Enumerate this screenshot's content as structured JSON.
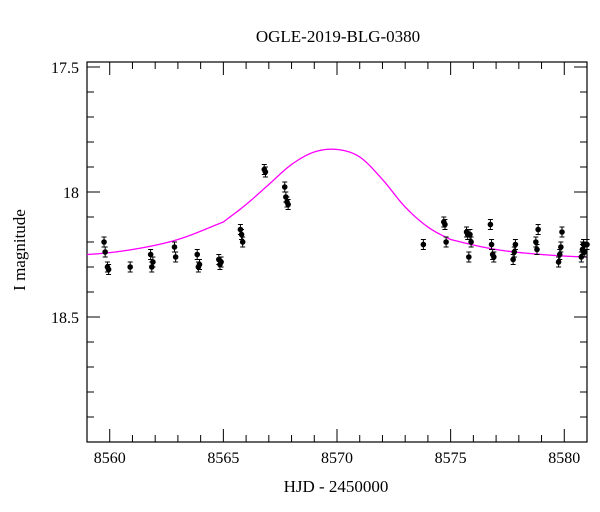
{
  "chart_data": {
    "type": "scatter",
    "title": "OGLE-2019-BLG-0380",
    "xlabel": "HJD - 2450000",
    "ylabel": "I magnitude",
    "xlim": [
      8559,
      8581
    ],
    "ylim": [
      19.0,
      17.48
    ],
    "y_inverted": true,
    "x_ticks": [
      8560,
      8565,
      8570,
      8575,
      8580
    ],
    "y_ticks": [
      17.5,
      18,
      18.5
    ],
    "x_tick_labels": [
      "8560",
      "8565",
      "8570",
      "8575",
      "8580"
    ],
    "y_tick_labels": [
      "17.5",
      "18",
      "18.5"
    ],
    "grid": false,
    "legend": "none",
    "colors": {
      "model": "#ff00ff",
      "points": "#000000",
      "axes": "#000000"
    },
    "series": [
      {
        "kind": "points",
        "x": [
          8559.75,
          8559.8,
          8559.9,
          8559.95,
          8560.9,
          8561.8,
          8561.85,
          8561.9,
          8562.85,
          8562.9,
          8563.85,
          8563.9,
          8563.95,
          8564.8,
          8564.85,
          8564.9,
          8565.75,
          8565.8,
          8565.85,
          8566.8,
          8566.85,
          8567.7,
          8567.75,
          8567.8,
          8567.85,
          8573.8,
          8574.7,
          8574.75,
          8574.8,
          8575.7,
          8575.75,
          8575.8,
          8575.85,
          8575.9,
          8576.75,
          8576.8,
          8576.85,
          8576.9,
          8577.75,
          8577.8,
          8577.85,
          8578.75,
          8578.8,
          8578.85,
          8579.75,
          8579.8,
          8579.85,
          8579.9,
          8580.75,
          8580.8,
          8580.85,
          8580.9,
          8581.0
        ],
        "y": [
          18.2,
          18.24,
          18.3,
          18.31,
          18.3,
          18.25,
          18.3,
          18.28,
          18.22,
          18.26,
          18.25,
          18.3,
          18.29,
          18.27,
          18.29,
          18.28,
          18.15,
          18.17,
          18.2,
          17.91,
          17.92,
          17.98,
          18.02,
          18.04,
          18.05,
          18.21,
          18.12,
          18.13,
          18.2,
          18.16,
          18.17,
          18.26,
          18.17,
          18.2,
          18.13,
          18.21,
          18.25,
          18.26,
          18.27,
          18.24,
          18.21,
          18.2,
          18.23,
          18.15,
          18.28,
          18.25,
          18.22,
          18.16,
          18.26,
          18.23,
          18.21,
          18.24,
          18.21
        ],
        "yerr": 0.02
      },
      {
        "kind": "model",
        "description_points_x": [
          8559,
          8561,
          8563,
          8565,
          8566,
          8567,
          8568,
          8569,
          8570,
          8571,
          8572,
          8573,
          8574,
          8575,
          8577,
          8579,
          8581
        ],
        "description_points_y": [
          18.25,
          18.23,
          18.19,
          18.12,
          18.05,
          17.97,
          17.89,
          17.84,
          17.83,
          17.86,
          17.95,
          18.06,
          18.14,
          18.19,
          18.23,
          18.25,
          18.26
        ]
      }
    ]
  }
}
